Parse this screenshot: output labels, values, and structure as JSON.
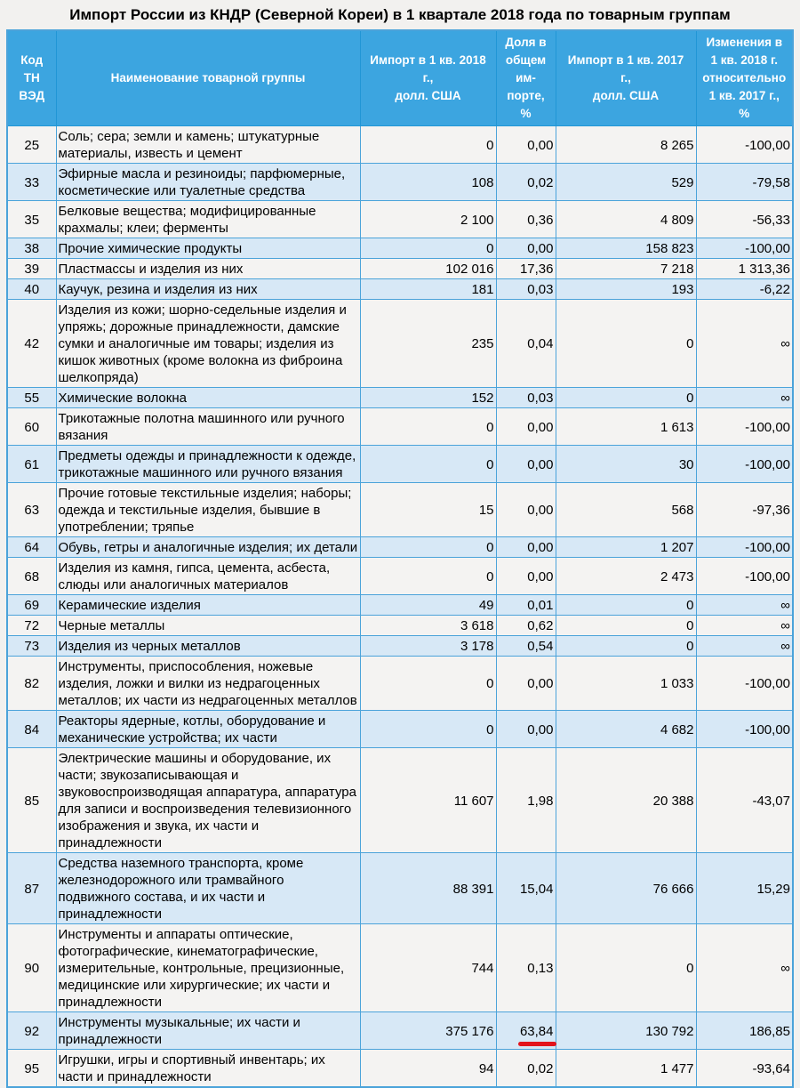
{
  "title": "Импорт России из КНДР (Северной Кореи) в 1 квартале 2018 года по товарным группам",
  "colors": {
    "header_bg": "#3ca5e0",
    "header_border": "#2196d6",
    "border": "#4ba3da",
    "row_bg": "#f4f3f2",
    "row_alt_bg": "#d7e8f6",
    "page_bg": "#f2f1ef",
    "underline": "#e3141c"
  },
  "table": {
    "headers": [
      "Код\nТН\nВЭД",
      "Наименование товарной группы",
      "Импорт в 1 кв. 2018\nг.,\nдолл. США",
      "Доля в\nобщем\nим-\nпорте,\n%",
      "Импорт в 1 кв. 2017\nг.,\nдолл. США",
      "Изменения в\n1 кв. 2018 г.\nотносительно\n1 кв. 2017 г.,\n%"
    ],
    "rows": [
      {
        "code": "25",
        "name": "Соль; сера; земли и камень; штукатурные материалы, известь и цемент",
        "import_2018": "0",
        "share": "0,00",
        "import_2017": "8 265",
        "change": "-100,00"
      },
      {
        "code": "33",
        "name": "Эфирные масла и резиноиды; парфюмерные, косметические или туалетные средства",
        "import_2018": "108",
        "share": "0,02",
        "import_2017": "529",
        "change": "-79,58"
      },
      {
        "code": "35",
        "name": "Белковые вещества; модифицированные крахмалы; клеи; ферменты",
        "import_2018": "2 100",
        "share": "0,36",
        "import_2017": "4 809",
        "change": "-56,33"
      },
      {
        "code": "38",
        "name": "Прочие химические продукты",
        "import_2018": "0",
        "share": "0,00",
        "import_2017": "158 823",
        "change": "-100,00"
      },
      {
        "code": "39",
        "name": "Пластмассы и изделия из них",
        "import_2018": "102 016",
        "share": "17,36",
        "import_2017": "7 218",
        "change": "1 313,36"
      },
      {
        "code": "40",
        "name": "Каучук, резина и изделия из них",
        "import_2018": "181",
        "share": "0,03",
        "import_2017": "193",
        "change": "-6,22"
      },
      {
        "code": "42",
        "name": "Изделия из кожи; шорно-седельные изделия и упряжь; дорожные принадлежности, дамские сумки и аналогичные им товары; изделия из кишок животных (кроме волокна из фиброина шелкопряда)",
        "import_2018": "235",
        "share": "0,04",
        "import_2017": "0",
        "change": "∞"
      },
      {
        "code": "55",
        "name": "Химические волокна",
        "import_2018": "152",
        "share": "0,03",
        "import_2017": "0",
        "change": "∞"
      },
      {
        "code": "60",
        "name": "Трикотажные полотна машинного или ручного вязания",
        "import_2018": "0",
        "share": "0,00",
        "import_2017": "1 613",
        "change": "-100,00"
      },
      {
        "code": "61",
        "name": "Предметы одежды и принадлежности к одежде, трикотажные машинного или ручного вязания",
        "import_2018": "0",
        "share": "0,00",
        "import_2017": "30",
        "change": "-100,00"
      },
      {
        "code": "63",
        "name": "Прочие готовые текстильные изделия; наборы; одежда и текстильные изделия, бывшие в употреблении; тряпье",
        "import_2018": "15",
        "share": "0,00",
        "import_2017": "568",
        "change": "-97,36"
      },
      {
        "code": "64",
        "name": "Обувь, гетры и аналогичные изделия; их детали",
        "import_2018": "0",
        "share": "0,00",
        "import_2017": "1 207",
        "change": "-100,00"
      },
      {
        "code": "68",
        "name": "Изделия из камня, гипса, цемента, асбеста, слюды или аналогичных материалов",
        "import_2018": "0",
        "share": "0,00",
        "import_2017": "2 473",
        "change": "-100,00"
      },
      {
        "code": "69",
        "name": "Керамические изделия",
        "import_2018": "49",
        "share": "0,01",
        "import_2017": "0",
        "change": "∞"
      },
      {
        "code": "72",
        "name": "Черные металлы",
        "import_2018": "3 618",
        "share": "0,62",
        "import_2017": "0",
        "change": "∞"
      },
      {
        "code": "73",
        "name": "Изделия из черных металлов",
        "import_2018": "3 178",
        "share": "0,54",
        "import_2017": "0",
        "change": "∞"
      },
      {
        "code": "82",
        "name": "Инструменты, приспособления, ножевые изделия, ложки и вилки из недрагоценных металлов; их части из недрагоценных металлов",
        "import_2018": "0",
        "share": "0,00",
        "import_2017": "1 033",
        "change": "-100,00"
      },
      {
        "code": "84",
        "name": "Реакторы ядерные, котлы, оборудование и механические устройства; их части",
        "import_2018": "0",
        "share": "0,00",
        "import_2017": "4 682",
        "change": "-100,00"
      },
      {
        "code": "85",
        "name": "Электрические машины и оборудование, их части; звукозаписывающая и звуковоспроизводящая аппаратура, аппаратура для записи и воспроизведения телевизионного изображения и звука, их части и принадлежности",
        "import_2018": "11 607",
        "share": "1,98",
        "import_2017": "20 388",
        "change": "-43,07"
      },
      {
        "code": "87",
        "name": "Средства наземного транспорта, кроме железнодорожного или трамвайного подвижного состава, и их части и принадлежности",
        "import_2018": "88 391",
        "share": "15,04",
        "import_2017": "76 666",
        "change": "15,29"
      },
      {
        "code": "90",
        "name": "Инструменты и аппараты оптические, фотографические, кинематографические, измерительные, контрольные, прецизионные, медицинские или хирургические; их части и принадлежности",
        "import_2018": "744",
        "share": "0,13",
        "import_2017": "0",
        "change": "∞"
      },
      {
        "code": "92",
        "name": "Инструменты музыкальные; их части и принадлежности",
        "import_2018": "375 176",
        "share": "63,84",
        "share_underlined": true,
        "import_2017": "130 792",
        "change": "186,85"
      },
      {
        "code": "95",
        "name": "Игрушки, игры и спортивный инвентарь; их части и принадлежности",
        "import_2018": "94",
        "share": "0,02",
        "import_2017": "1 477",
        "change": "-93,64"
      }
    ]
  }
}
